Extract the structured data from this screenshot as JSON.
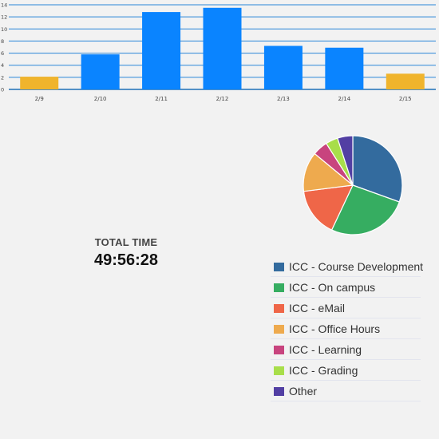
{
  "chart_data": [
    {
      "type": "bar",
      "categories": [
        "2/9",
        "2/10",
        "2/11",
        "2/12",
        "2/13",
        "2/14",
        "2/15"
      ],
      "values": [
        2.1,
        5.8,
        12.8,
        13.5,
        7.2,
        6.9,
        2.6
      ],
      "bar_colors": [
        "#f0b42c",
        "#0a84ff",
        "#0a84ff",
        "#0a84ff",
        "#0a84ff",
        "#0a84ff",
        "#f0b42c"
      ],
      "ylim": [
        0,
        14
      ],
      "yticks": [
        "0",
        "2",
        "4",
        "6",
        "8",
        "10",
        "12",
        "14"
      ],
      "grid": true,
      "grid_color": "#2a86d8"
    },
    {
      "type": "pie",
      "labels": [
        "ICC - Course Development",
        "ICC - On campus",
        "ICC - eMail",
        "ICC - Office Hours",
        "ICC - Learning",
        "ICC - Grading",
        "Other"
      ],
      "values": [
        30.5,
        26.5,
        16.0,
        13.0,
        5.0,
        4.0,
        5.0
      ],
      "colors": [
        "#336b9e",
        "#36ad61",
        "#ef6648",
        "#eeaa4e",
        "#c8447e",
        "#a8de4a",
        "#523fa3"
      ],
      "legend_position": "bottom-right"
    }
  ],
  "summary": {
    "label": "TOTAL TIME",
    "value": "49:56:28"
  }
}
